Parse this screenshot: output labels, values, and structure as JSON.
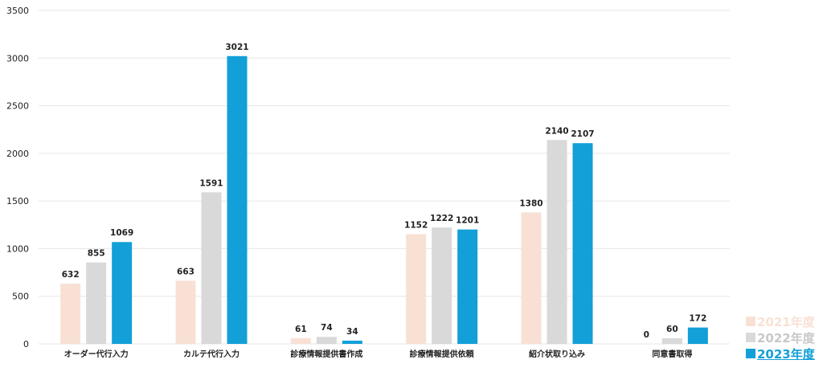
{
  "chart_data": {
    "type": "bar",
    "title": "",
    "xlabel": "",
    "ylabel": "",
    "ylim": [
      0,
      3500
    ],
    "yticks": [
      0,
      500,
      1000,
      1500,
      2000,
      2500,
      3000,
      3500
    ],
    "grid": true,
    "legend_position": "bottom-right",
    "categories": [
      "オーダー代行入力",
      "カルテ代行入力",
      "診療情報提供書作成",
      "診療情報提供依頼",
      "紹介状取り込み",
      "同意書取得"
    ],
    "series": [
      {
        "name": "2021年度",
        "color": "#f8e1d4",
        "values": [
          632,
          663,
          61,
          1152,
          1380,
          0
        ]
      },
      {
        "name": "2022年度",
        "color": "#d9d9d9",
        "values": [
          855,
          1591,
          74,
          1222,
          2140,
          60
        ]
      },
      {
        "name": "2023年度",
        "color": "#139fd8",
        "values": [
          1069,
          3021,
          34,
          1201,
          2107,
          172
        ]
      }
    ]
  }
}
